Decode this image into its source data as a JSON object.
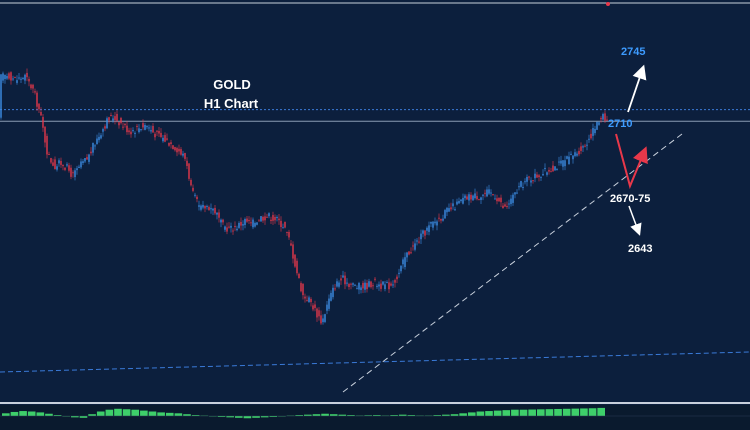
{
  "chart_data": {
    "type": "candlestick",
    "title": "GOLD",
    "subtitle": "H1 Chart",
    "colors": {
      "background": "#0c1f3d",
      "bull": "#3d8fe8",
      "bear": "#e8384a",
      "level_line": "#3a7ad8",
      "support_line": "#c8d0dc",
      "arrow_up": "#ffffff",
      "arrow_red": "#e8384a",
      "label_blue": "#3d9bff",
      "label_white": "#ffffff",
      "histogram": "#3ecf6a",
      "histogram_bg": "#0a1a2e"
    },
    "ylim": [
      2535,
      2770
    ],
    "close_path": [
      [
        0,
        2729
      ],
      [
        8,
        2731
      ],
      [
        16,
        2728
      ],
      [
        25,
        2730
      ],
      [
        33,
        2722
      ],
      [
        40,
        2708
      ],
      [
        48,
        2682
      ],
      [
        55,
        2676
      ],
      [
        62,
        2678
      ],
      [
        68,
        2674
      ],
      [
        73,
        2670
      ],
      [
        80,
        2676
      ],
      [
        88,
        2681
      ],
      [
        95,
        2690
      ],
      [
        102,
        2698
      ],
      [
        108,
        2704
      ],
      [
        114,
        2706
      ],
      [
        122,
        2701
      ],
      [
        130,
        2697
      ],
      [
        138,
        2699
      ],
      [
        146,
        2701
      ],
      [
        154,
        2696
      ],
      [
        162,
        2693
      ],
      [
        170,
        2690
      ],
      [
        178,
        2686
      ],
      [
        186,
        2680
      ],
      [
        192,
        2660
      ],
      [
        200,
        2650
      ],
      [
        208,
        2652
      ],
      [
        215,
        2649
      ],
      [
        222,
        2640
      ],
      [
        230,
        2638
      ],
      [
        238,
        2640
      ],
      [
        245,
        2643
      ],
      [
        252,
        2641
      ],
      [
        260,
        2645
      ],
      [
        268,
        2646
      ],
      [
        276,
        2644
      ],
      [
        284,
        2640
      ],
      [
        290,
        2630
      ],
      [
        297,
        2612
      ],
      [
        303,
        2598
      ],
      [
        310,
        2595
      ],
      [
        316,
        2588
      ],
      [
        322,
        2582
      ],
      [
        328,
        2594
      ],
      [
        335,
        2604
      ],
      [
        342,
        2608
      ],
      [
        350,
        2605
      ],
      [
        358,
        2603
      ],
      [
        366,
        2604
      ],
      [
        374,
        2606
      ],
      [
        382,
        2604
      ],
      [
        390,
        2604
      ],
      [
        398,
        2610
      ],
      [
        406,
        2622
      ],
      [
        414,
        2628
      ],
      [
        422,
        2634
      ],
      [
        430,
        2640
      ],
      [
        438,
        2644
      ],
      [
        446,
        2648
      ],
      [
        455,
        2652
      ],
      [
        464,
        2656
      ],
      [
        472,
        2658
      ],
      [
        480,
        2658
      ],
      [
        488,
        2660
      ],
      [
        496,
        2658
      ],
      [
        504,
        2650
      ],
      [
        512,
        2656
      ],
      [
        520,
        2664
      ],
      [
        528,
        2668
      ],
      [
        536,
        2670
      ],
      [
        544,
        2672
      ],
      [
        552,
        2675
      ],
      [
        560,
        2677
      ],
      [
        568,
        2680
      ],
      [
        576,
        2684
      ],
      [
        584,
        2688
      ],
      [
        592,
        2696
      ],
      [
        598,
        2702
      ],
      [
        603,
        2708
      ],
      [
        607,
        2703
      ]
    ],
    "levels": [
      {
        "value": 2710,
        "style": "dotted"
      },
      {
        "value": 2703,
        "style": "solid"
      }
    ],
    "annotations": [
      {
        "label": "2745",
        "color": "blue"
      },
      {
        "label": "2710",
        "color": "blue"
      },
      {
        "label": "2670-75",
        "color": "white"
      },
      {
        "label": "2643",
        "color": "white"
      }
    ],
    "scenario": {
      "bull_target": 2745,
      "pullback_zone": "2670-75",
      "bear_target": 2643
    },
    "histogram": [
      0.3,
      0.45,
      0.55,
      0.5,
      0.4,
      0.25,
      0.1,
      -0.05,
      -0.15,
      -0.2,
      0.2,
      0.5,
      0.7,
      0.8,
      0.75,
      0.7,
      0.6,
      0.5,
      0.4,
      0.35,
      0.3,
      0.2,
      0.1,
      0.05,
      -0.05,
      -0.1,
      -0.15,
      -0.2,
      -0.25,
      -0.2,
      -0.15,
      -0.1,
      -0.05,
      0.05,
      0.1,
      0.15,
      0.2,
      0.25,
      0.2,
      0.15,
      0.1,
      0.05,
      0.08,
      0.1,
      0.05,
      0.1,
      0.15,
      0.1,
      0.05,
      0.05,
      0.1,
      0.15,
      0.2,
      0.3,
      0.4,
      0.5,
      0.55,
      0.6,
      0.65,
      0.7,
      0.7,
      0.72,
      0.74,
      0.76,
      0.78,
      0.8,
      0.82,
      0.84,
      0.86,
      0.9
    ],
    "grid": false
  }
}
